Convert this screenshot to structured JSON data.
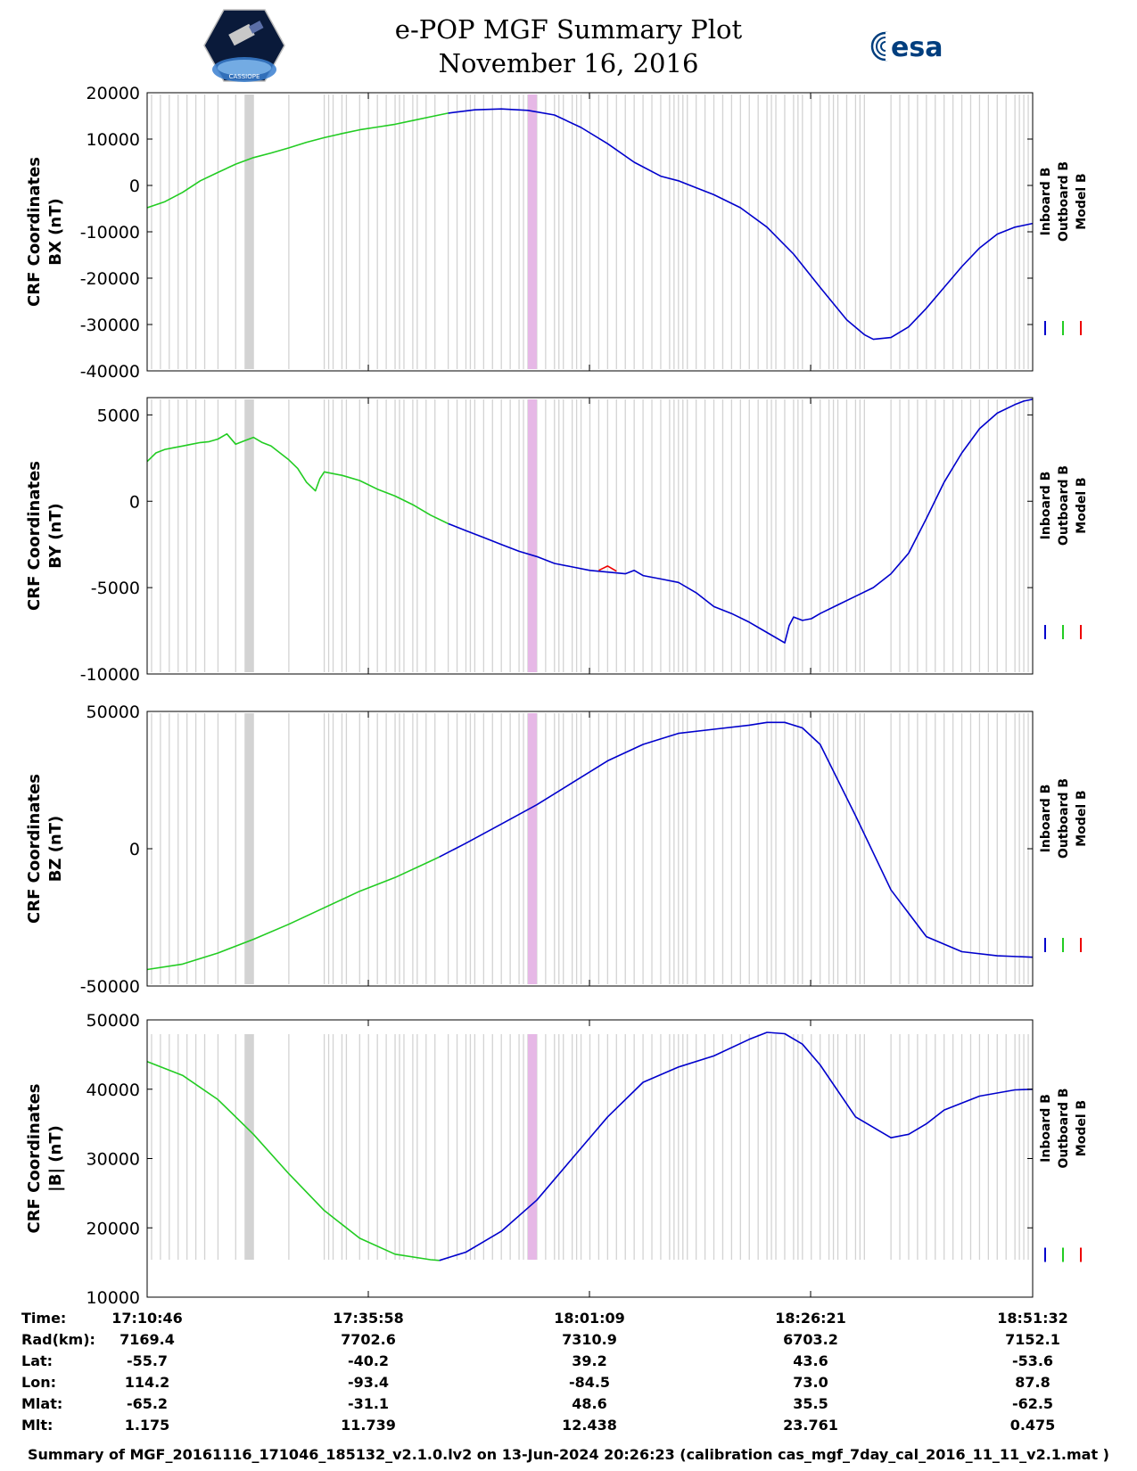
{
  "header": {
    "title": "e-POP MGF Summary Plot",
    "date": "November 16, 2016",
    "left_logo_text": "CASSIOPE",
    "right_logo_text": "esa"
  },
  "colors": {
    "inboard": "#0000cc",
    "outboard": "#22cc22",
    "model": "#ee0000",
    "gap_bars": "#d3d3d3",
    "highlight_bar": "#e6b8e6",
    "esa_blue": "#003e7e"
  },
  "legend": [
    "Inboard B",
    "Outboard B",
    "Model B"
  ],
  "chart_data": [
    {
      "type": "line",
      "ylabel_line1": "CRF Coordinates",
      "ylabel_line2": "BX (nT)",
      "ylim": [
        -40000,
        20000
      ],
      "yticks": [
        -40000,
        -30000,
        -20000,
        -10000,
        0,
        10000,
        20000
      ],
      "xlim": [
        0,
        100
      ],
      "series": [
        {
          "name": "Outboard B",
          "x": [
            0,
            2,
            4,
            6,
            8,
            10,
            12,
            14,
            16,
            18,
            20,
            22,
            24,
            26,
            28,
            30,
            32,
            34
          ],
          "y": [
            -4800,
            -3500,
            -1500,
            1000,
            2800,
            4600,
            6000,
            7000,
            8100,
            9300,
            10300,
            11200,
            12000,
            12600,
            13200,
            14000,
            14800,
            15600
          ]
        },
        {
          "name": "Inboard B",
          "x": [
            34,
            37,
            40,
            43,
            46,
            49,
            52,
            55,
            58,
            60,
            62,
            64,
            67,
            70,
            73,
            76,
            79,
            81,
            82,
            84,
            86,
            88,
            90,
            92,
            94,
            96,
            98,
            100
          ],
          "y": [
            15600,
            16300,
            16500,
            16200,
            15200,
            12500,
            9000,
            5000,
            2000,
            1000,
            -500,
            -2000,
            -4800,
            -9000,
            -14800,
            -22000,
            -29000,
            -32200,
            -33200,
            -32800,
            -30500,
            -26500,
            -22000,
            -17500,
            -13500,
            -10500,
            -9000,
            -8200
          ]
        },
        {
          "name": "Model B",
          "x": [],
          "y": []
        }
      ]
    },
    {
      "type": "line",
      "ylabel_line1": "CRF Coordinates",
      "ylabel_line2": "BY (nT)",
      "ylim": [
        -10000,
        6000
      ],
      "yticks": [
        -10000,
        -5000,
        0,
        5000
      ],
      "xlim": [
        0,
        100
      ],
      "series": [
        {
          "name": "Outboard B",
          "x": [
            0,
            1,
            2,
            3,
            4,
            5,
            6,
            7,
            8,
            9,
            10,
            11,
            12,
            13,
            14,
            15,
            16,
            17,
            18,
            19,
            19.5,
            20,
            22,
            24,
            26,
            28,
            30,
            32,
            34
          ],
          "y": [
            2300,
            2800,
            3000,
            3100,
            3200,
            3300,
            3400,
            3450,
            3600,
            3900,
            3300,
            3500,
            3700,
            3400,
            3200,
            2800,
            2400,
            1900,
            1100,
            600,
            1300,
            1700,
            1500,
            1200,
            700,
            300,
            -200,
            -800,
            -1300
          ]
        },
        {
          "name": "Inboard B",
          "x": [
            34,
            36,
            38,
            40,
            42,
            44,
            46,
            48,
            50,
            52,
            54,
            55,
            56,
            58,
            60,
            62,
            64,
            66,
            68,
            70,
            72,
            72.5,
            73,
            74,
            75,
            76,
            78,
            80,
            82,
            84,
            86,
            88,
            90,
            92,
            94,
            96,
            98,
            99,
            100
          ],
          "y": [
            -1300,
            -1700,
            -2100,
            -2500,
            -2900,
            -3200,
            -3600,
            -3800,
            -4000,
            -4100,
            -4200,
            -4000,
            -4300,
            -4500,
            -4700,
            -5300,
            -6100,
            -6500,
            -7000,
            -7600,
            -8200,
            -7200,
            -6700,
            -6900,
            -6800,
            -6500,
            -6000,
            -5500,
            -5000,
            -4200,
            -3000,
            -1000,
            1100,
            2800,
            4200,
            5100,
            5600,
            5800,
            5900
          ]
        },
        {
          "name": "Model B",
          "x": [
            51,
            52,
            53
          ],
          "y": [
            -4000,
            -3750,
            -4050
          ]
        }
      ]
    },
    {
      "type": "line",
      "ylabel_line1": "CRF Coordinates",
      "ylabel_line2": "BZ (nT)",
      "ylim": [
        -50000,
        50000
      ],
      "yticks": [
        -50000,
        0,
        50000
      ],
      "xlim": [
        0,
        100
      ],
      "series": [
        {
          "name": "Outboard B",
          "x": [
            0,
            4,
            8,
            12,
            16,
            20,
            24,
            28,
            32,
            33
          ],
          "y": [
            -44000,
            -42000,
            -38000,
            -33000,
            -27500,
            -21500,
            -15500,
            -10500,
            -4500,
            -3000
          ]
        },
        {
          "name": "Inboard B",
          "x": [
            33,
            36,
            40,
            44,
            48,
            52,
            56,
            60,
            64,
            68,
            70,
            72,
            74,
            76,
            80,
            84,
            88,
            92,
            96,
            100
          ],
          "y": [
            -3000,
            2000,
            9000,
            16000,
            24000,
            32000,
            38000,
            42000,
            43500,
            45000,
            46000,
            46000,
            44000,
            38000,
            12000,
            -15000,
            -32000,
            -37500,
            -39000,
            -39500
          ]
        },
        {
          "name": "Model B",
          "x": [],
          "y": []
        }
      ]
    },
    {
      "type": "line",
      "ylabel_line1": "CRF Coordinates",
      "ylabel_line2": "|B| (nT)",
      "ylim": [
        10000,
        50000
      ],
      "yticks": [
        10000,
        20000,
        30000,
        40000,
        50000
      ],
      "xlim": [
        0,
        100
      ],
      "series": [
        {
          "name": "Outboard B",
          "x": [
            0,
            4,
            8,
            12,
            16,
            20,
            24,
            28,
            32,
            33
          ],
          "y": [
            44000,
            42000,
            38500,
            33500,
            27800,
            22500,
            18500,
            16200,
            15400,
            15300
          ]
        },
        {
          "name": "Inboard B",
          "x": [
            33,
            36,
            40,
            44,
            48,
            52,
            56,
            60,
            64,
            68,
            70,
            72,
            74,
            76,
            80,
            84,
            86,
            88,
            90,
            94,
            98,
            100
          ],
          "y": [
            15300,
            16500,
            19500,
            24000,
            30000,
            36000,
            41000,
            43200,
            44800,
            47200,
            48200,
            48000,
            46500,
            43500,
            36000,
            33000,
            33500,
            35000,
            37000,
            39000,
            39900,
            40000
          ]
        },
        {
          "name": "Model B",
          "x": [],
          "y": []
        }
      ]
    }
  ],
  "gap_bars_x": [
    0.5,
    1.5,
    2.5,
    3.5,
    4.5,
    5.5,
    6.5,
    8,
    10,
    11.5,
    12,
    16,
    20,
    20.5,
    21,
    22,
    22.5,
    24,
    25,
    26,
    27,
    28,
    28.5,
    29,
    30,
    30.5,
    31.5,
    32.5,
    34,
    35,
    36,
    36.5,
    37,
    38,
    39,
    40,
    41,
    42,
    42.5,
    43,
    44,
    45,
    46,
    46.5,
    47,
    48,
    48.5,
    49,
    50,
    51,
    52,
    53,
    54,
    55,
    56,
    57,
    58,
    59,
    59.5,
    60,
    60.5,
    61,
    62,
    63,
    64,
    65,
    66,
    67,
    68,
    69,
    70,
    70.5,
    71,
    72,
    73,
    73.5,
    74,
    75,
    76,
    77,
    77.5,
    78,
    79,
    80,
    80.5,
    81,
    84,
    85,
    86,
    87,
    88,
    89,
    90,
    91,
    92,
    93,
    94,
    95,
    96,
    97,
    98,
    98.5,
    99,
    99.5
  ],
  "gap_band_x": [
    11,
    12
  ],
  "highlight_band_x": [
    43,
    44
  ],
  "time_axis": {
    "ticks": [
      "17:10:46",
      "17:35:58",
      "18:01:09",
      "18:26:21",
      "18:51:32"
    ],
    "rows": [
      {
        "label": "Time:",
        "values": [
          "17:10:46",
          "17:35:58",
          "18:01:09",
          "18:26:21",
          "18:51:32"
        ]
      },
      {
        "label": "Rad(km):",
        "values": [
          "7169.4",
          "7702.6",
          "7310.9",
          "6703.2",
          "7152.1"
        ]
      },
      {
        "label": "Lat:",
        "values": [
          "-55.7",
          "-40.2",
          "39.2",
          "43.6",
          "-53.6"
        ]
      },
      {
        "label": "Lon:",
        "values": [
          "114.2",
          "-93.4",
          "-84.5",
          "73.0",
          "87.8"
        ]
      },
      {
        "label": "Mlat:",
        "values": [
          "-65.2",
          "-31.1",
          "48.6",
          "35.5",
          "-62.5"
        ]
      },
      {
        "label": "Mlt:",
        "values": [
          "1.175",
          "11.739",
          "12.438",
          "23.761",
          "0.475"
        ]
      }
    ]
  },
  "footer": "Summary of MGF_20161116_171046_185132_v2.1.0.lv2 on 13-Jun-2024 20:26:23 (calibration cas_mgf_7day_cal_2016_11_11_v2.1.mat )"
}
